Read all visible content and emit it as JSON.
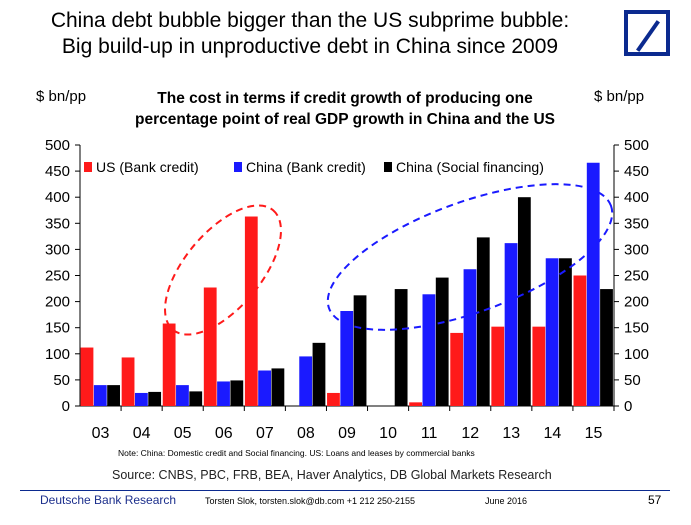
{
  "header": {
    "title_line1": "China debt bubble bigger than the US subprime bubble:",
    "title_line2": "Big build-up in unproductive debt in China since 2009"
  },
  "chart_data": {
    "type": "bar",
    "title": "The cost in terms if credit growth of producing one percentage point of real GDP growth in China and the US",
    "title_line1": "The cost in terms if credit growth of producing one",
    "title_line2": "percentage point of real GDP growth in China and the US",
    "ylabel_left": "$ bn/pp",
    "ylabel_right": "$ bn/pp",
    "ylim": [
      0,
      500
    ],
    "yticks": [
      0,
      50,
      100,
      150,
      200,
      250,
      300,
      350,
      400,
      450,
      500
    ],
    "categories": [
      "03",
      "04",
      "05",
      "06",
      "07",
      "08",
      "09",
      "10",
      "11",
      "12",
      "13",
      "14",
      "15"
    ],
    "series": [
      {
        "name": "US (Bank credit)",
        "color": "#ff1a1a",
        "values": [
          112,
          93,
          158,
          227,
          363,
          0,
          25,
          0,
          7,
          140,
          152,
          152,
          250
        ]
      },
      {
        "name": "China (Bank credit)",
        "color": "#1a1aff",
        "values": [
          40,
          25,
          40,
          47,
          68,
          95,
          182,
          0,
          214,
          262,
          312,
          283,
          466
        ]
      },
      {
        "name": "China (Social financing)",
        "color": "#000000",
        "values": [
          40,
          27,
          28,
          49,
          72,
          121,
          212,
          224,
          246,
          323,
          400,
          283,
          224
        ]
      }
    ],
    "legend_position": "top-left",
    "grid": false,
    "annotations": [
      "red dashed ellipse around US bars 2005-2007",
      "blue dashed ellipse around China bars 2009-2015"
    ]
  },
  "footer": {
    "note": "Note: China: Domestic credit and Social financing. US: Loans and leases by commercial banks",
    "source": "Source: CNBS, PBC, FRB, BEA, Haver Analytics, DB Global Markets Research",
    "brand": "Deutsche Bank Research",
    "author": "Torsten Slok, torsten.slok@db.com  +1 212 250-2155",
    "date": "June 2016",
    "page": "57"
  },
  "colors": {
    "brand_blue": "#0b2a8f"
  },
  "icons": {
    "logo": "deutsche-bank-logo"
  }
}
